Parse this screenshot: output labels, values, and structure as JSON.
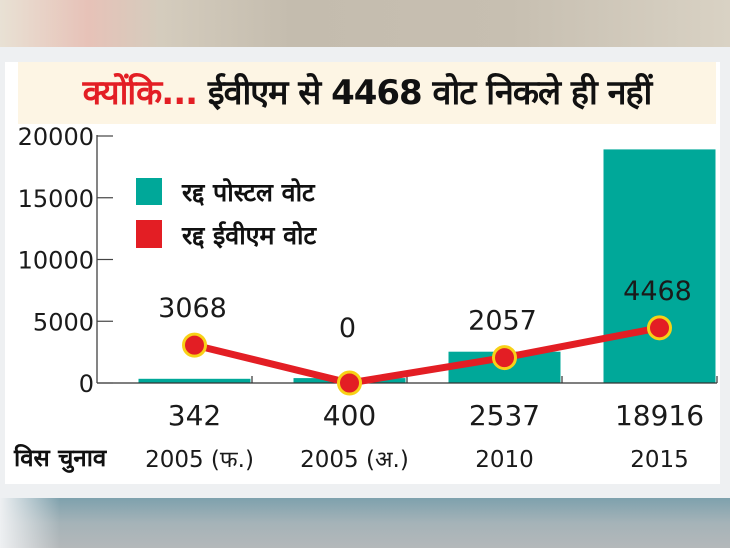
{
  "title": {
    "accent": "क्योंकि...",
    "rest": "ईवीएम से 4468 वोट निकले ही नहीं"
  },
  "colors": {
    "postal": "#00a899",
    "evm": "#e31e24",
    "marker_ring": "#f7d117",
    "title_accent": "#e31e24",
    "title_band": "#fdf5e4"
  },
  "chart_data": {
    "type": "bar",
    "title": "क्योंकि... ईवीएम से 4468 वोट निकले ही नहीं",
    "xlabel": "विस चुनाव",
    "ylabel": "",
    "ylim": [
      0,
      20000
    ],
    "yticks": [
      0,
      5000,
      10000,
      15000,
      20000
    ],
    "ytick_labels": [
      "0",
      "5000",
      "10000",
      "15000",
      "20000"
    ],
    "categories": [
      "2005 (फ.)",
      "2005 (अ.)",
      "2010",
      "2015"
    ],
    "legend_position": "top-left",
    "grid": false,
    "series": [
      {
        "name": "रद्द पोस्टल वोट",
        "type": "bar",
        "values": [
          342,
          400,
          2537,
          18916
        ],
        "labels": [
          "342",
          "400",
          "2537",
          "18916"
        ]
      },
      {
        "name": "रद्द ईवीएम वोट",
        "type": "line",
        "values": [
          3068,
          0,
          2057,
          4468
        ],
        "labels": [
          "3068",
          "0",
          "2057",
          "4468"
        ]
      }
    ]
  }
}
